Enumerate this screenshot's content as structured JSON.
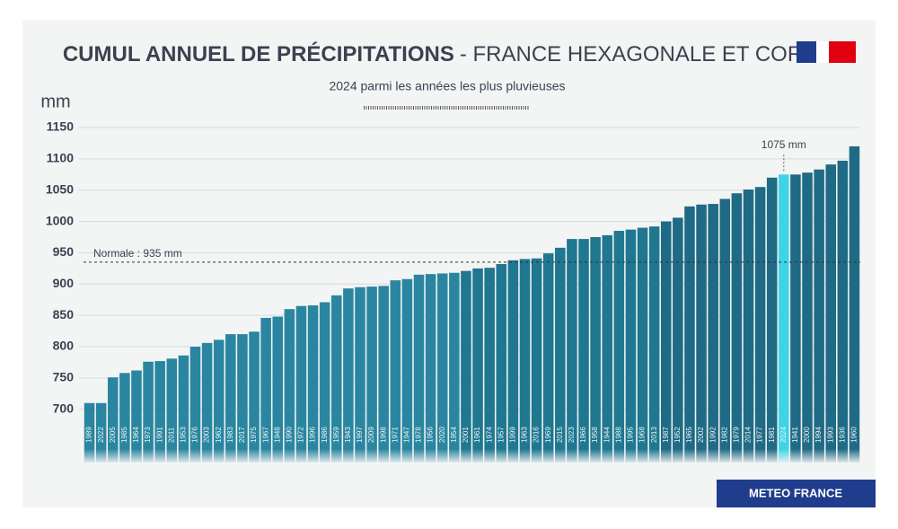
{
  "chart_data": {
    "type": "bar",
    "title": [
      "CUMUL ANNUEL DE PRÉCIPITATIONS",
      "- FRANCE HEXAGONALE ET CORSE"
    ],
    "subtitle": "2024 parmi les années les plus pluvieuses",
    "ylabel": "mm",
    "source": "METEO FRANCE",
    "categories": [
      "1989",
      "2022",
      "2005",
      "1985",
      "1964",
      "1973",
      "1991",
      "2011",
      "1953",
      "1976",
      "2003",
      "1962",
      "1983",
      "2017",
      "1975",
      "1967",
      "1948",
      "1990",
      "1972",
      "1996",
      "1986",
      "1959",
      "1943",
      "1997",
      "2009",
      "1998",
      "1971",
      "1947",
      "1978",
      "1956",
      "2020",
      "1954",
      "2001",
      "1961",
      "1974",
      "1957",
      "1999",
      "1963",
      "2016",
      "1969",
      "2015",
      "2023",
      "1966",
      "1958",
      "1944",
      "1988",
      "1995",
      "1968",
      "2013",
      "1987",
      "1952",
      "1965",
      "2002",
      "1992",
      "1982",
      "1979",
      "2014",
      "1977",
      "1981",
      "2024",
      "1941",
      "2000",
      "1994",
      "1993",
      "1936",
      "1960"
    ],
    "values": [
      710,
      710,
      751,
      758,
      762,
      776,
      777,
      781,
      786,
      800,
      806,
      811,
      820,
      820,
      824,
      846,
      848,
      860,
      865,
      866,
      871,
      882,
      893,
      895,
      896,
      897,
      906,
      908,
      915,
      916,
      917,
      918,
      921,
      925,
      926,
      932,
      938,
      940,
      941,
      949,
      958,
      972,
      972,
      975,
      978,
      985,
      987,
      990,
      992,
      1000,
      1006,
      1024,
      1027,
      1028,
      1036,
      1045,
      1051,
      1055,
      1070,
      1075,
      1075,
      1078,
      1083,
      1091,
      1097,
      1120
    ],
    "value_labels": [
      null,
      null,
      null,
      null,
      null,
      null,
      null,
      null,
      null,
      null,
      null,
      null,
      null,
      null,
      null,
      null,
      null,
      null,
      null,
      null,
      null,
      null,
      null,
      null,
      null,
      null,
      null,
      null,
      null,
      null,
      null,
      null,
      null,
      null,
      null,
      null,
      null,
      null,
      null,
      null,
      null,
      null,
      null,
      null,
      null,
      null,
      null,
      null,
      null,
      null,
      null,
      null,
      null,
      null,
      null,
      null,
      null,
      null,
      null,
      "1075 mm",
      null,
      null,
      null,
      null,
      null,
      null
    ],
    "colors": [
      "#2a86a0",
      "#2a86a0",
      "#2a86a0",
      "#2a86a0",
      "#2a86a0",
      "#2a86a0",
      "#2a86a0",
      "#2a86a0",
      "#2a86a0",
      "#2a86a0",
      "#2a86a0",
      "#2a86a0",
      "#2a86a0",
      "#2a86a0",
      "#2a86a0",
      "#2a86a0",
      "#2a86a0",
      "#2a86a0",
      "#2a86a0",
      "#2a86a0",
      "#2a86a0",
      "#2a86a0",
      "#2a86a0",
      "#2a86a0",
      "#2a86a0",
      "#2a86a0",
      "#2a86a0",
      "#2a86a0",
      "#2a86a0",
      "#2a86a0",
      "#2a86a0",
      "#2a86a0",
      "#1f7790",
      "#1f7790",
      "#1f7790",
      "#1f7790",
      "#1f7790",
      "#1f7790",
      "#1f7790",
      "#1f7790",
      "#1f7790",
      "#1f7790",
      "#1f7790",
      "#1f7790",
      "#1f7790",
      "#1f7790",
      "#1f7790",
      "#1f7790",
      "#1f7790",
      "#1f6a85",
      "#1f6a85",
      "#1f6a85",
      "#1f6a85",
      "#1f6a85",
      "#1f6a85",
      "#1f6a85",
      "#1f6a85",
      "#1f6a85",
      "#1f6a85",
      "#3ed4e6",
      "#1f6a85",
      "#1f6a85",
      "#1f6a85",
      "#1f6a85",
      "#1f6a85",
      "#1f6a85"
    ],
    "reference": {
      "value": 935,
      "label": "Normale : 935 mm"
    },
    "ylim": [
      615,
      1150
    ],
    "yticks": [
      700,
      750,
      800,
      850,
      900,
      950,
      1000,
      1050,
      1100,
      1150
    ],
    "grid": true
  }
}
